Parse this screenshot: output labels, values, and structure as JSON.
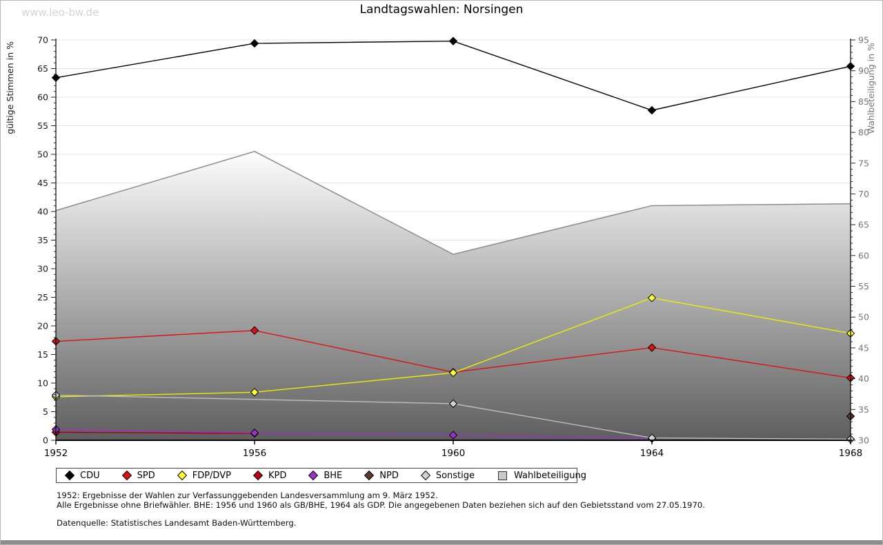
{
  "watermark": "www.leo-bw.de",
  "title": "Landtagswahlen: Norsingen",
  "chart_data": {
    "type": "line",
    "x": [
      1952,
      1956,
      1960,
      1964,
      1968
    ],
    "xlim": [
      1952,
      1968
    ],
    "x_tick_labels": [
      "1952",
      "1956",
      "1960",
      "1964",
      "1968"
    ],
    "grid": true,
    "legend_position": "bottom",
    "left_axis": {
      "label": "gültige Stimmen in %",
      "min": 0,
      "max": 70,
      "tick_step": 5,
      "minor_step": 1
    },
    "right_axis": {
      "label": "Wahlbeteiligung in %",
      "min": 30,
      "max": 95,
      "tick_step": 5,
      "minor_step": 1
    },
    "series": [
      {
        "name": "CDU",
        "type": "line",
        "axis": "left",
        "color": "#000000",
        "marker_fill": "#000000",
        "values": [
          63.4,
          69.4,
          69.8,
          57.7,
          65.4
        ]
      },
      {
        "name": "SPD",
        "type": "line",
        "axis": "left",
        "color": "#dd1111",
        "marker_fill": "#dd1111",
        "values": [
          17.3,
          19.2,
          11.9,
          16.2,
          10.9
        ]
      },
      {
        "name": "FDP/DVP",
        "type": "line",
        "axis": "left",
        "color": "#eded00",
        "marker_fill": "#ffff33",
        "values": [
          7.6,
          8.4,
          11.8,
          24.9,
          18.7
        ]
      },
      {
        "name": "KPD",
        "type": "line",
        "axis": "left",
        "color": "#aa0011",
        "marker_fill": "#bb0011",
        "values": [
          1.4,
          1.2,
          null,
          null,
          null
        ]
      },
      {
        "name": "BHE",
        "type": "line",
        "axis": "left",
        "color": "#9933cc",
        "marker_fill": "#9933cc",
        "values": [
          1.9,
          1.3,
          0.9,
          0.3,
          null
        ]
      },
      {
        "name": "NPD",
        "type": "line",
        "axis": "left",
        "color": "#5b3a2a",
        "marker_fill": "#5b3a2a",
        "values": [
          null,
          null,
          null,
          null,
          4.2
        ]
      },
      {
        "name": "Sonstige",
        "type": "line",
        "axis": "left",
        "color": "#bfbfbf",
        "marker_fill": "#d2d2d2",
        "values": [
          7.9,
          null,
          6.4,
          0.4,
          0.2
        ]
      },
      {
        "name": "Wahlbeteiligung",
        "type": "area",
        "axis": "right",
        "color_top": "#fdfdfd",
        "color_bottom": "#5e5e5e",
        "stroke": "#8c8c8c",
        "values": [
          67.3,
          76.9,
          60.2,
          68.1,
          68.4
        ]
      }
    ]
  },
  "footnotes": {
    "line1": "1952: Ergebnisse der Wahlen zur Verfassunggebenden Landesversammlung am 9. März 1952.",
    "line2": "Alle Ergebnisse ohne Briefwähler. BHE: 1956 und 1960 als GB/BHE, 1964 als GDP. Die angegebenen Daten beziehen sich auf den Gebietsstand vom 27.05.1970.",
    "line3": "Datenquelle: Statistisches Landesamt Baden-Württemberg."
  }
}
